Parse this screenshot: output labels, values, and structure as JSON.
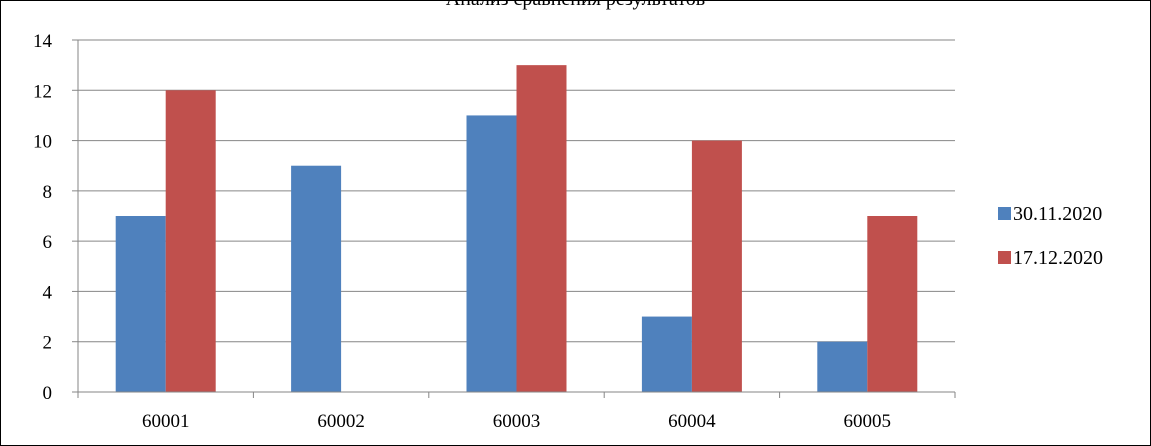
{
  "chart_data": {
    "type": "bar",
    "title": "Анализ сравнения результатов",
    "categories": [
      "60001",
      "60002",
      "60003",
      "60004",
      "60005"
    ],
    "series": [
      {
        "name": "30.11.2020",
        "color": "#4F81BD",
        "values": [
          7,
          9,
          11,
          3,
          2
        ]
      },
      {
        "name": "17.12.2020",
        "color": "#C0504D",
        "values": [
          12,
          0,
          13,
          10,
          7
        ]
      }
    ],
    "ylim": [
      0,
      14
    ],
    "yticks": [
      0,
      2,
      4,
      6,
      8,
      10,
      12,
      14
    ],
    "grid": true,
    "legend": "right"
  }
}
